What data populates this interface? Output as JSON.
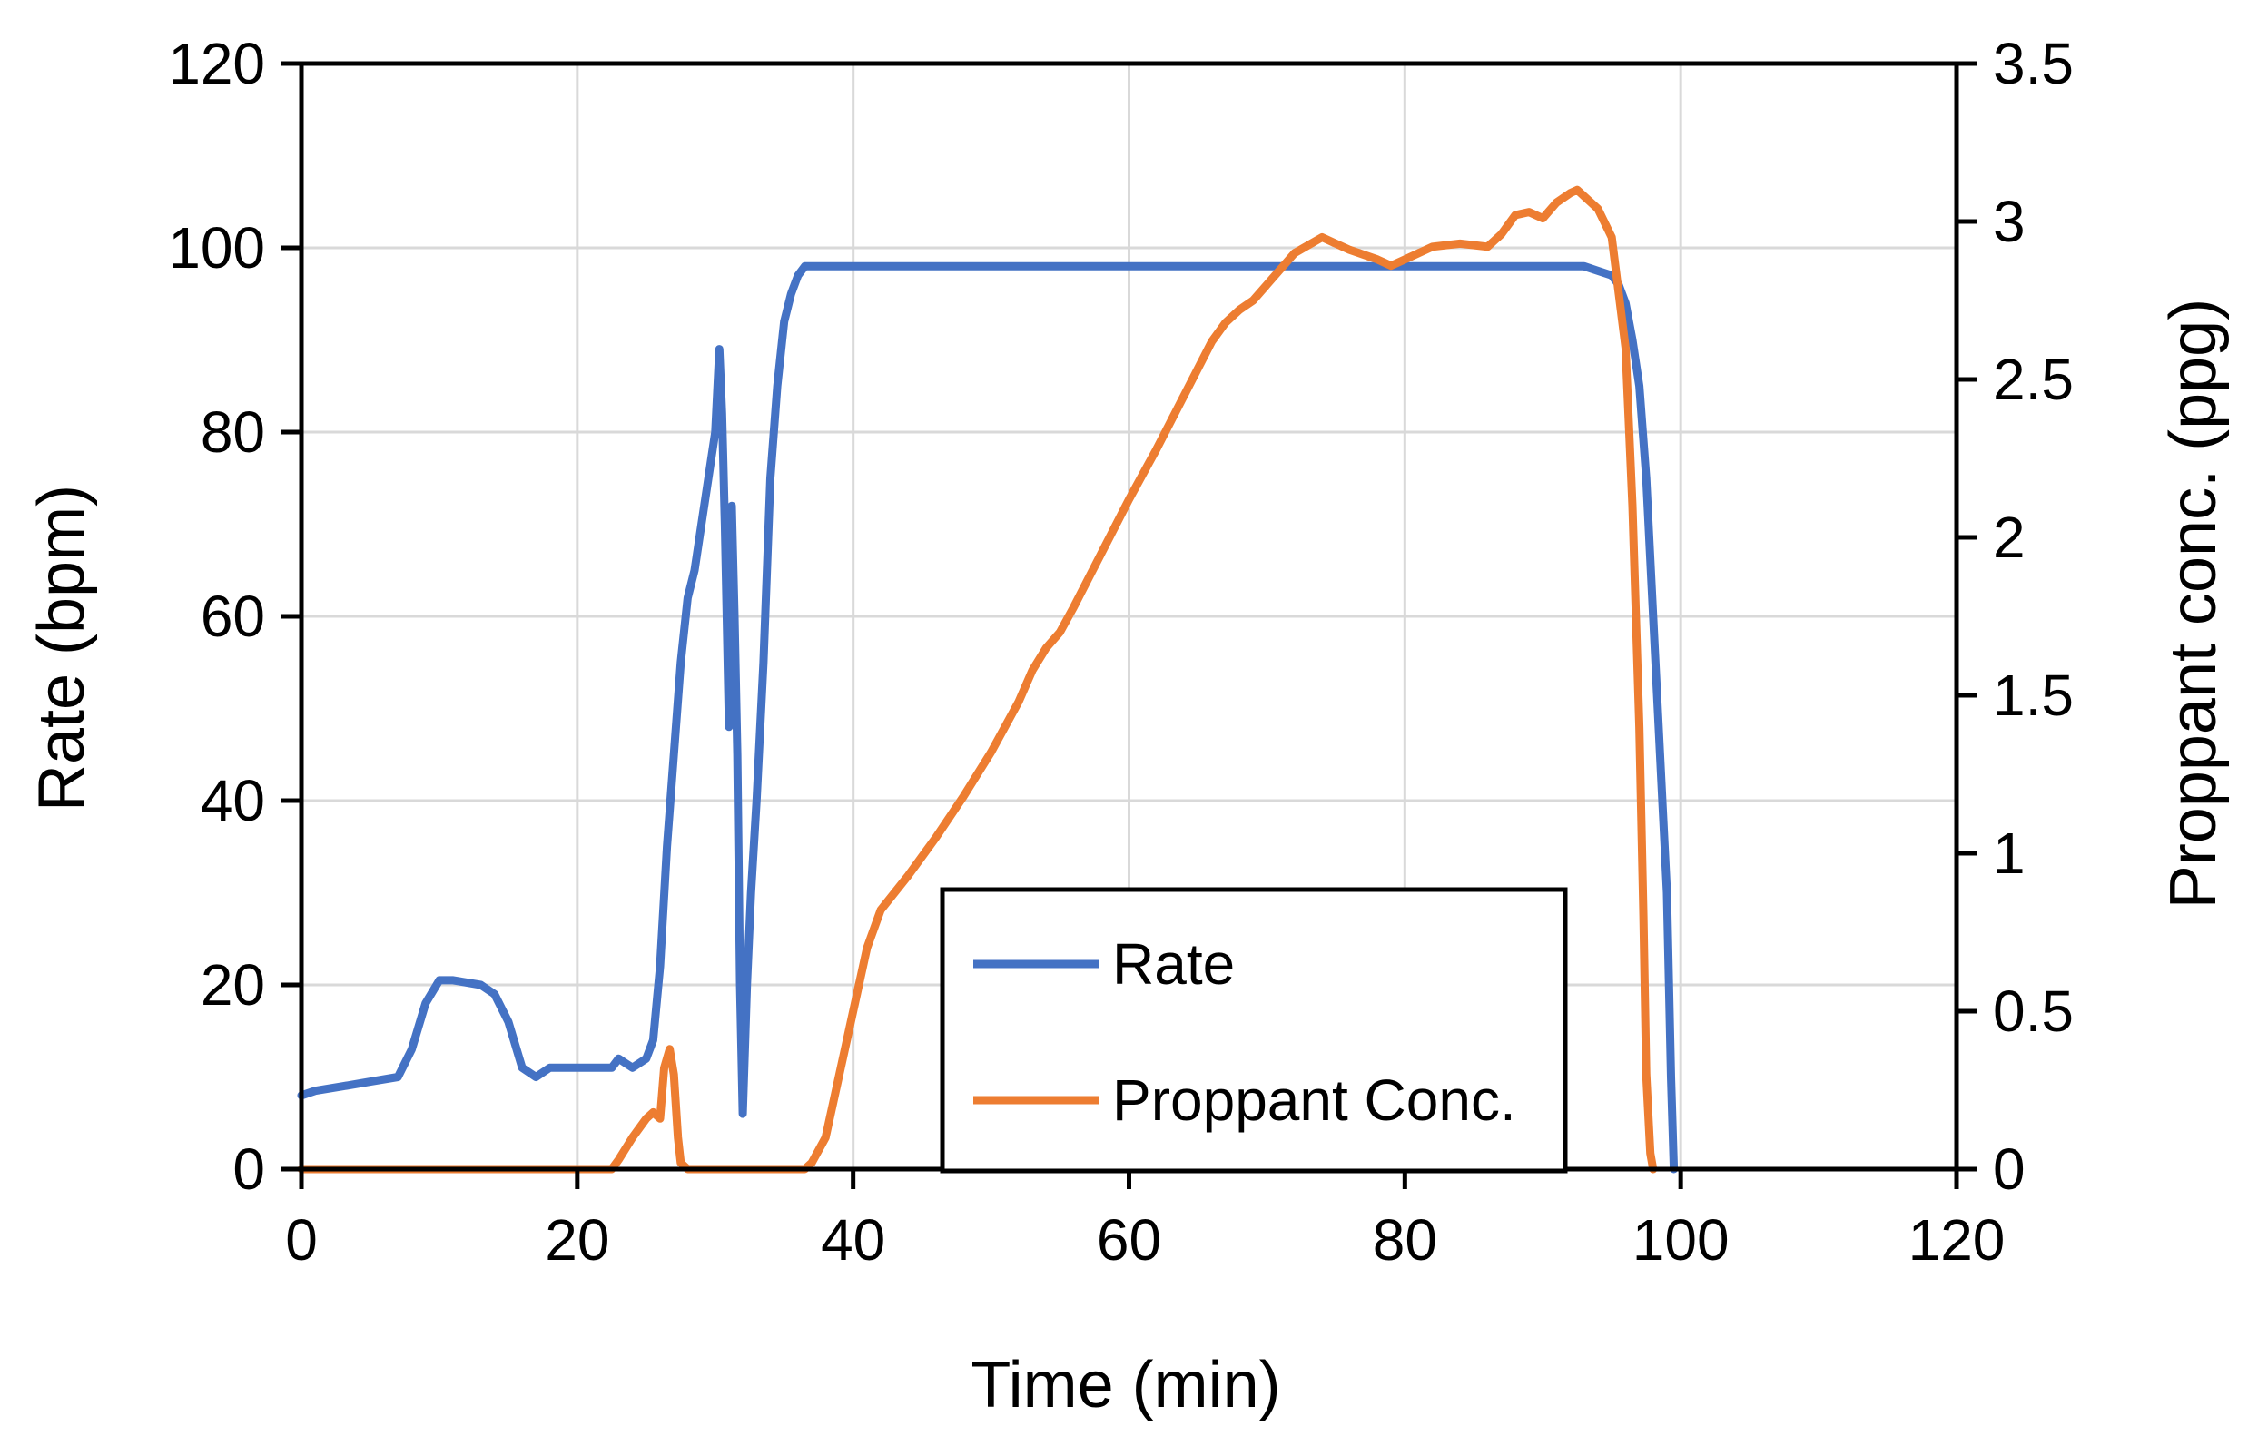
{
  "chart_data": {
    "type": "line",
    "title": "",
    "xlabel": "Time (min)",
    "ylabel": "Rate (bpm)",
    "y2label": "Proppant conc. (ppg)",
    "xlim": [
      0,
      120
    ],
    "ylim": [
      0,
      120
    ],
    "y2lim": [
      0,
      3.5
    ],
    "xticks": [
      "0",
      "20",
      "40",
      "60",
      "80",
      "100",
      "120"
    ],
    "yticks": [
      "0",
      "20",
      "40",
      "60",
      "80",
      "100",
      "120"
    ],
    "y2ticks": [
      "0",
      "0.5",
      "1",
      "1.5",
      "2",
      "2.5",
      "3",
      "3.5"
    ],
    "grid": true,
    "legend": {
      "placement": "bottom-center",
      "entries": [
        "Rate",
        "Proppant Conc."
      ]
    },
    "series": [
      {
        "name": "Rate",
        "axis": "left",
        "color": "#4472C4",
        "x": [
          0,
          1,
          3,
          5,
          7,
          8,
          9,
          10,
          11,
          13,
          14,
          15,
          16,
          17,
          18,
          20,
          22,
          22.5,
          23,
          23.5,
          24,
          25,
          25.5,
          26,
          26.5,
          27,
          27.5,
          28,
          28.5,
          29,
          29.5,
          30,
          30.3,
          30.5,
          30.7,
          31,
          31.2,
          31.4,
          31.6,
          31.8,
          32,
          32.3,
          32.6,
          33,
          33.5,
          34,
          34.5,
          35,
          35.5,
          36,
          36.5,
          37,
          37.5,
          40,
          50,
          60,
          70,
          80,
          90,
          92,
          93,
          94,
          95,
          95.5,
          96,
          96.5,
          97,
          97.5,
          98,
          98.5,
          99,
          99.3,
          99.5
        ],
        "y": [
          8,
          8.5,
          9,
          9.5,
          10,
          13,
          18,
          20.5,
          20.5,
          20,
          19,
          16,
          11,
          10,
          11,
          11,
          11,
          11,
          12,
          11.5,
          11,
          12,
          14,
          22,
          35,
          45,
          55,
          62,
          65,
          70,
          75,
          80,
          89,
          82,
          70,
          48,
          72,
          60,
          45,
          20,
          6,
          20,
          30,
          40,
          55,
          75,
          85,
          92,
          95,
          97,
          98,
          98,
          98,
          98,
          98,
          98,
          98,
          98,
          98,
          98,
          98,
          97.5,
          97,
          96,
          94,
          90,
          85,
          75,
          60,
          45,
          30,
          10,
          0
        ]
      },
      {
        "name": "Proppant Conc.",
        "axis": "right",
        "color": "#ED7D31",
        "x": [
          0,
          10,
          20,
          22.5,
          23,
          24,
          25,
          25.5,
          26,
          26.3,
          26.7,
          27,
          27.3,
          27.5,
          28,
          30,
          35,
          36.5,
          37,
          38,
          39,
          40,
          41,
          42,
          44,
          46,
          48,
          50,
          52,
          53,
          54,
          55,
          56,
          58,
          60,
          62,
          64,
          66,
          67,
          68,
          69,
          70,
          72,
          74,
          75,
          76,
          78,
          79,
          80,
          82,
          84,
          86,
          87,
          88,
          89,
          90,
          91,
          92,
          92.5,
          93,
          94,
          95,
          96,
          96.5,
          97,
          97.3,
          97.5,
          97.8,
          98
        ],
        "y": [
          0,
          0,
          0,
          0,
          0.03,
          0.1,
          0.16,
          0.18,
          0.16,
          0.32,
          0.38,
          0.3,
          0.1,
          0.02,
          0,
          0,
          0,
          0,
          0.02,
          0.1,
          0.3,
          0.5,
          0.7,
          0.82,
          0.93,
          1.05,
          1.18,
          1.32,
          1.48,
          1.58,
          1.65,
          1.7,
          1.78,
          1.95,
          2.12,
          2.28,
          2.45,
          2.62,
          2.68,
          2.72,
          2.75,
          2.8,
          2.9,
          2.95,
          2.93,
          2.91,
          2.88,
          2.86,
          2.88,
          2.92,
          2.93,
          2.92,
          2.96,
          3.02,
          3.03,
          3.01,
          3.06,
          3.09,
          3.1,
          3.08,
          3.04,
          2.95,
          2.6,
          2.1,
          1.4,
          0.8,
          0.3,
          0.05,
          0
        ]
      }
    ]
  }
}
